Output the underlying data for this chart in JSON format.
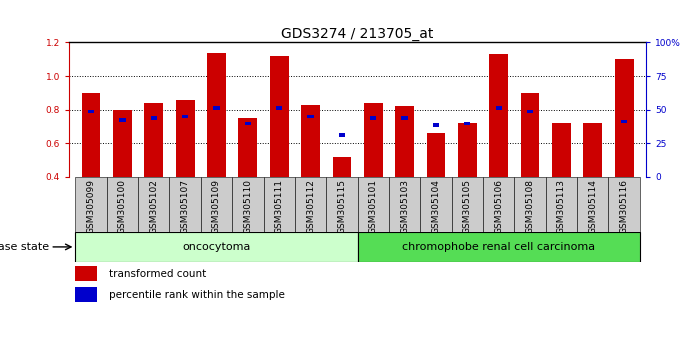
{
  "title": "GDS3274 / 213705_at",
  "samples": [
    "GSM305099",
    "GSM305100",
    "GSM305102",
    "GSM305107",
    "GSM305109",
    "GSM305110",
    "GSM305111",
    "GSM305112",
    "GSM305115",
    "GSM305101",
    "GSM305103",
    "GSM305104",
    "GSM305105",
    "GSM305106",
    "GSM305108",
    "GSM305113",
    "GSM305114",
    "GSM305116"
  ],
  "red_values": [
    0.9,
    0.8,
    0.84,
    0.86,
    1.14,
    0.75,
    1.12,
    0.83,
    0.52,
    0.84,
    0.82,
    0.66,
    0.72,
    1.13,
    0.9,
    0.72,
    0.72,
    1.1
  ],
  "blue_values": [
    0.79,
    0.74,
    0.75,
    0.76,
    0.81,
    0.72,
    0.81,
    0.76,
    0.65,
    0.75,
    0.75,
    0.71,
    0.72,
    0.81,
    0.79,
    null,
    null,
    0.73
  ],
  "ylim_left": [
    0.4,
    1.2
  ],
  "ylim_right": [
    0,
    100
  ],
  "yticks_left": [
    0.4,
    0.6,
    0.8,
    1.0,
    1.2
  ],
  "yticks_right": [
    0,
    25,
    50,
    75,
    100
  ],
  "ytick_labels_right": [
    "0",
    "25",
    "50",
    "75",
    "100%"
  ],
  "group1_label": "oncocytoma",
  "group2_label": "chromophobe renal cell carcinoma",
  "group1_count": 9,
  "group2_count": 9,
  "bar_width": 0.6,
  "red_color": "#cc0000",
  "blue_color": "#0000cc",
  "group1_bg": "#ccffcc",
  "group2_bg": "#55dd55",
  "tick_bg": "#cccccc",
  "legend_red": "transformed count",
  "legend_blue": "percentile rank within the sample",
  "disease_state_label": "disease state",
  "title_fontsize": 10,
  "tick_fontsize": 6.5,
  "label_fontsize": 8,
  "legend_fontsize": 7.5
}
